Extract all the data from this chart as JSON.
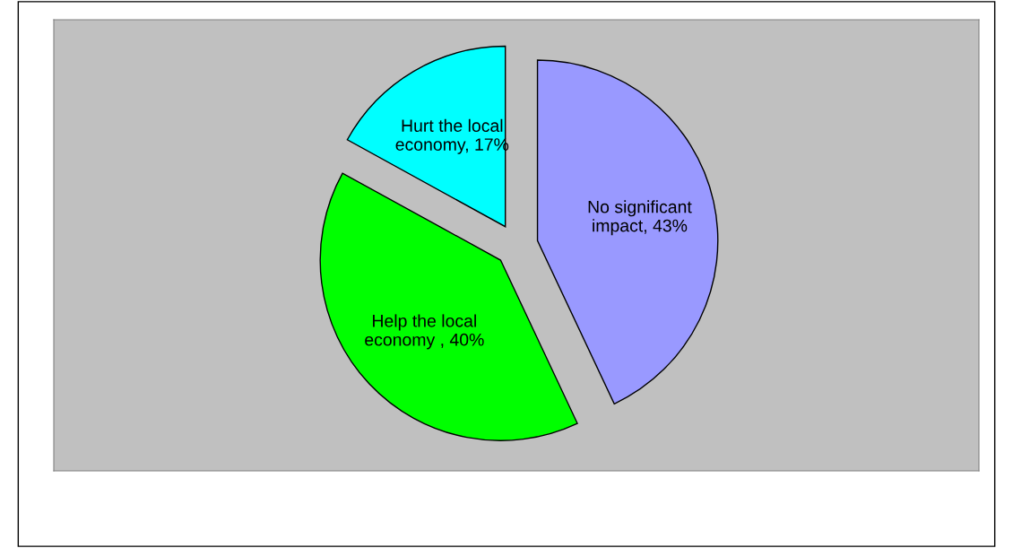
{
  "chart_data": {
    "type": "pie",
    "categories": [
      "No significant impact, 43%",
      "Help the local economy , 40%",
      "Hurt the local economy, 17%"
    ],
    "values": [
      43,
      40,
      17
    ],
    "colors": [
      "#9999ff",
      "#00ff00",
      "#00ffff"
    ],
    "legend": false
  }
}
